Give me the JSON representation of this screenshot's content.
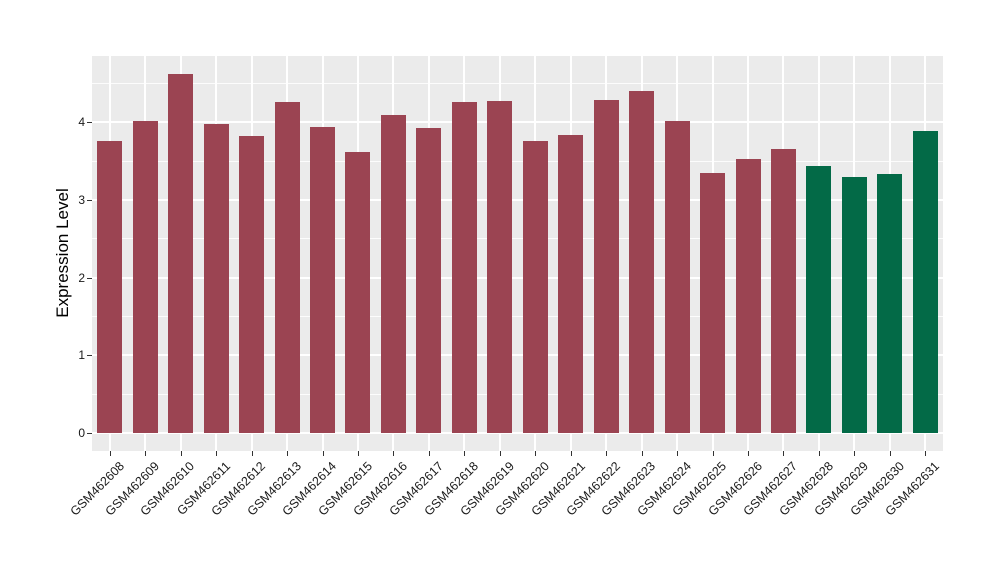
{
  "figure": {
    "background": "#FFFFFF",
    "panel_background": "#EBEBEB",
    "gridline_color": "#FFFFFF",
    "axis_text_color": "#1A1A1A",
    "axis_title_color": "#000000",
    "bar_color_main": "#9B4452",
    "bar_color_highlight": "#036A47"
  },
  "chart_data": {
    "type": "bar",
    "title": "",
    "xlabel": "",
    "ylabel": "Expression Level",
    "categories": [
      "GSM462608",
      "GSM462609",
      "GSM462610",
      "GSM462611",
      "GSM462612",
      "GSM462613",
      "GSM462614",
      "GSM462615",
      "GSM462616",
      "GSM462617",
      "GSM462618",
      "GSM462619",
      "GSM462620",
      "GSM462621",
      "GSM462622",
      "GSM462623",
      "GSM462624",
      "GSM462625",
      "GSM462626",
      "GSM462627",
      "GSM462628",
      "GSM462629",
      "GSM462630",
      "GSM462631"
    ],
    "values": [
      3.76,
      4.02,
      4.62,
      3.97,
      3.82,
      4.26,
      3.94,
      3.61,
      4.09,
      3.92,
      4.26,
      4.27,
      3.76,
      3.83,
      4.29,
      4.4,
      4.01,
      3.34,
      3.53,
      3.66,
      3.43,
      3.3,
      3.33,
      3.89
    ],
    "colors": [
      "#9B4452",
      "#9B4452",
      "#9B4452",
      "#9B4452",
      "#9B4452",
      "#9B4452",
      "#9B4452",
      "#9B4452",
      "#9B4452",
      "#9B4452",
      "#9B4452",
      "#9B4452",
      "#9B4452",
      "#9B4452",
      "#9B4452",
      "#9B4452",
      "#9B4452",
      "#9B4452",
      "#9B4452",
      "#9B4452",
      "#036A47",
      "#036A47",
      "#036A47",
      "#036A47"
    ],
    "yticks": [
      0,
      1,
      2,
      3,
      4
    ],
    "ylim": [
      -0.23,
      4.85
    ],
    "grid": "major+minor, white on gray panel",
    "legend": false,
    "x_tick_rotation_deg": 45
  }
}
